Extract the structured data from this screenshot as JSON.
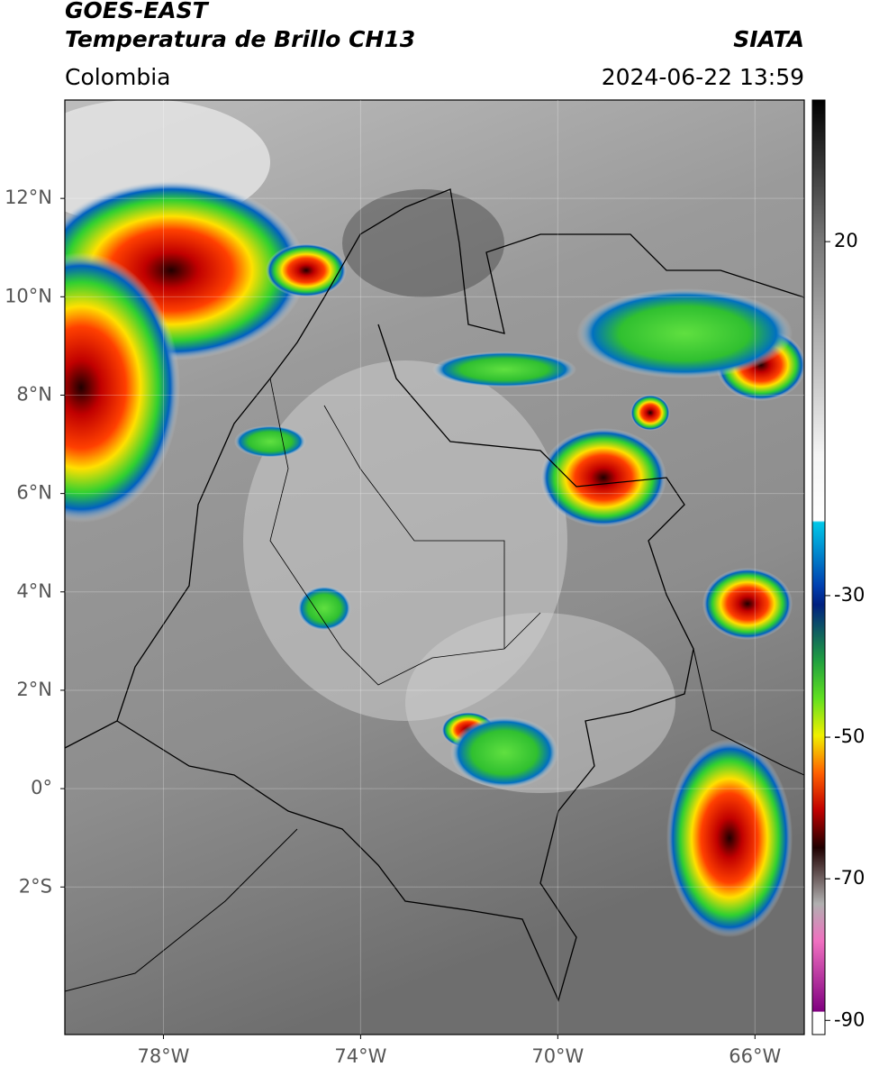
{
  "header": {
    "title": "GOES-EAST",
    "subtitle": "Temperatura de Brillo CH13",
    "source": "SIATA",
    "region": "Colombia",
    "datetime": "2024-06-22 13:59"
  },
  "map": {
    "xlim": [
      -80,
      -65
    ],
    "ylim": [
      -5,
      14
    ],
    "xticks": [
      {
        "value": -78,
        "label": "78°W"
      },
      {
        "value": -74,
        "label": "74°W"
      },
      {
        "value": -70,
        "label": "70°W"
      },
      {
        "value": -66,
        "label": "66°W"
      }
    ],
    "yticks": [
      {
        "value": 12,
        "label": "12°N"
      },
      {
        "value": 10,
        "label": "10°N"
      },
      {
        "value": 8,
        "label": "8°N"
      },
      {
        "value": 6,
        "label": "6°N"
      },
      {
        "value": 4,
        "label": "4°N"
      },
      {
        "value": 2,
        "label": "2°N"
      },
      {
        "value": 0,
        "label": "0°"
      },
      {
        "value": -2,
        "label": "2°S"
      }
    ],
    "grid": true
  },
  "colorbar": {
    "lim": [
      -92,
      40
    ],
    "ticks": [
      20,
      -30,
      -50,
      -70,
      -90
    ]
  }
}
